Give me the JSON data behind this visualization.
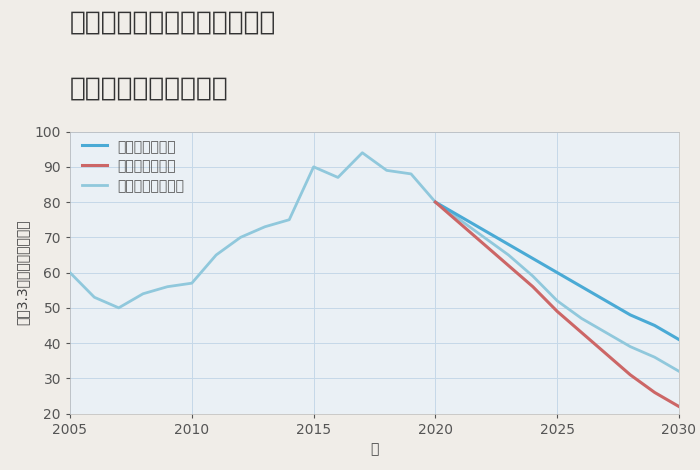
{
  "title_line1": "大阪府大阪市東住吉区矢田の",
  "title_line2": "中古戸建ての価格推移",
  "xlabel": "年",
  "ylabel": "坪（3.3㎡）単価（万円）",
  "background_color": "#f0ede8",
  "plot_background_color": "#eaf0f5",
  "grid_color": "#c5d8e8",
  "ylim": [
    20,
    100
  ],
  "xlim": [
    2005,
    2030
  ],
  "yticks": [
    20,
    30,
    40,
    50,
    60,
    70,
    80,
    90,
    100
  ],
  "xticks": [
    2005,
    2010,
    2015,
    2020,
    2025,
    2030
  ],
  "normal_scenario": {
    "label": "ノーマルシナリオ",
    "color": "#90c8dc",
    "linewidth": 2.0,
    "years": [
      2005,
      2006,
      2007,
      2008,
      2009,
      2010,
      2011,
      2012,
      2013,
      2014,
      2015,
      2016,
      2017,
      2018,
      2019,
      2020,
      2021,
      2022,
      2023,
      2024,
      2025,
      2026,
      2027,
      2028,
      2029,
      2030
    ],
    "values": [
      60,
      53,
      50,
      54,
      56,
      57,
      65,
      70,
      73,
      75,
      90,
      87,
      94,
      89,
      88,
      80,
      75,
      70,
      65,
      59,
      52,
      47,
      43,
      39,
      36,
      32
    ]
  },
  "good_scenario": {
    "label": "グッドシナリオ",
    "color": "#4aaad5",
    "linewidth": 2.2,
    "years": [
      2020,
      2021,
      2022,
      2023,
      2024,
      2025,
      2026,
      2027,
      2028,
      2029,
      2030
    ],
    "values": [
      80,
      76,
      72,
      68,
      64,
      60,
      56,
      52,
      48,
      45,
      41
    ]
  },
  "bad_scenario": {
    "label": "バッドシナリオ",
    "color": "#cc6666",
    "linewidth": 2.2,
    "years": [
      2020,
      2021,
      2022,
      2023,
      2024,
      2025,
      2026,
      2027,
      2028,
      2029,
      2030
    ],
    "values": [
      80,
      74,
      68,
      62,
      56,
      49,
      43,
      37,
      31,
      26,
      22
    ]
  },
  "title_fontsize": 19,
  "axis_label_fontsize": 10,
  "tick_fontsize": 10,
  "legend_fontsize": 10
}
